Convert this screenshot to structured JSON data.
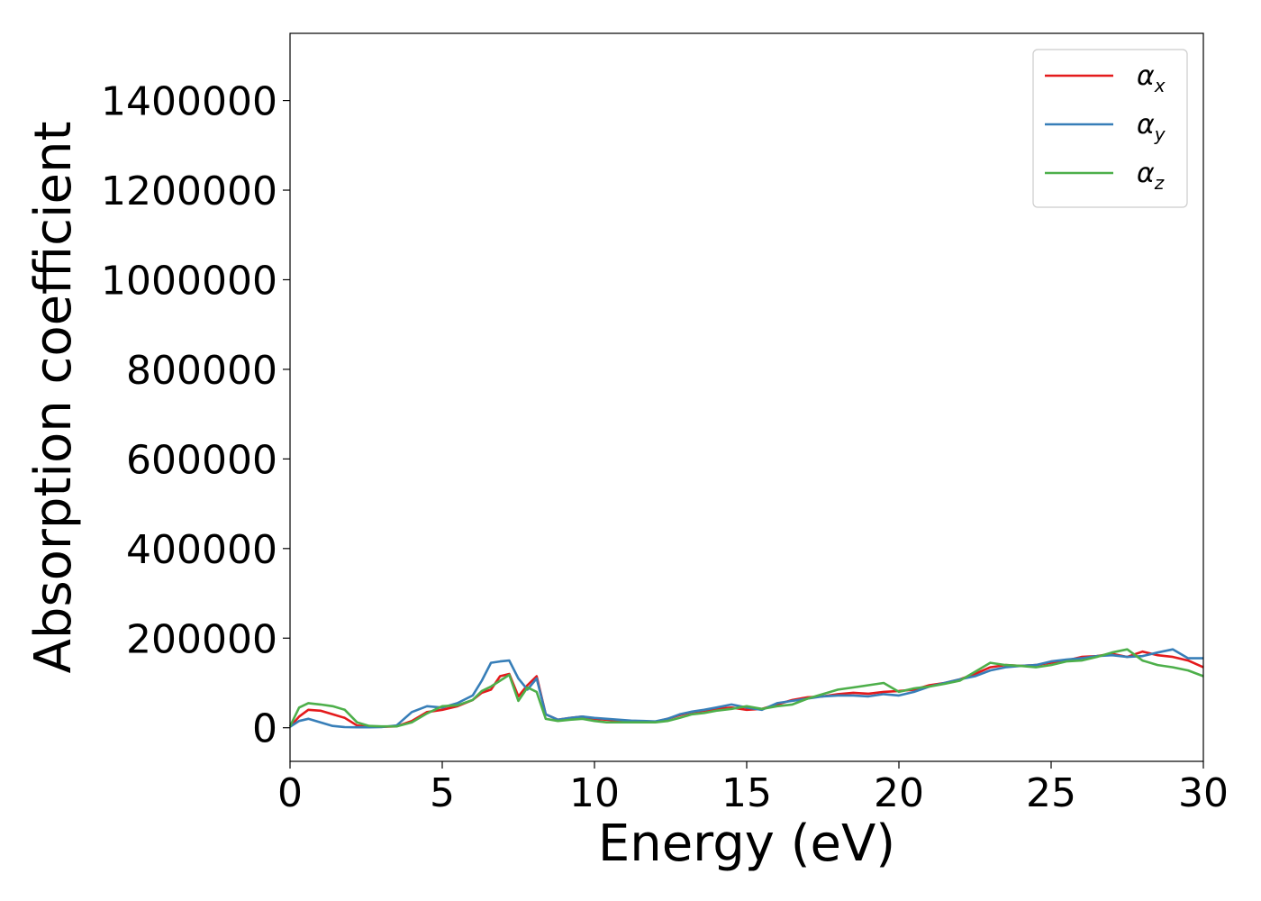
{
  "chart_data": {
    "type": "line",
    "title": "",
    "xlabel": "Energy (eV)",
    "ylabel": "Absorption coefficient",
    "xlim": [
      0,
      30
    ],
    "ylim": [
      -75000,
      1550000
    ],
    "xticks": [
      0,
      5,
      10,
      15,
      20,
      25,
      30
    ],
    "yticks": [
      0,
      200000,
      400000,
      600000,
      800000,
      1000000,
      1200000,
      1400000
    ],
    "xtick_labels": [
      "0",
      "5",
      "10",
      "15",
      "20",
      "25",
      "30"
    ],
    "ytick_labels": [
      "0",
      "200000",
      "400000",
      "600000",
      "800000",
      "1000000",
      "1200000",
      "1400000"
    ],
    "grid": false,
    "legend_position": "top-right",
    "series": [
      {
        "name": "α",
        "subscript": "x",
        "color": "#e41a1c",
        "x": [
          0,
          0.3,
          0.6,
          1.0,
          1.4,
          1.8,
          2.2,
          2.6,
          3.0,
          3.5,
          4.0,
          4.5,
          5.0,
          5.5,
          6.0,
          6.3,
          6.6,
          6.9,
          7.2,
          7.5,
          7.8,
          8.1,
          8.4,
          8.8,
          9.2,
          9.6,
          10.0,
          10.4,
          10.8,
          11.2,
          11.6,
          12.0,
          12.4,
          12.8,
          13.2,
          13.6,
          14.0,
          14.5,
          15.0,
          15.5,
          16.0,
          16.5,
          17.0,
          17.5,
          18.0,
          18.5,
          19.0,
          19.5,
          20.0,
          20.5,
          21.0,
          21.5,
          22.0,
          22.5,
          23.0,
          23.5,
          24.0,
          24.5,
          25.0,
          25.5,
          26.0,
          26.5,
          27.0,
          27.5,
          28.0,
          28.5,
          29.0,
          29.5,
          30.0
        ],
        "y": [
          2000,
          25000,
          40000,
          38000,
          30000,
          22000,
          5000,
          2000,
          2000,
          3000,
          15000,
          35000,
          40000,
          48000,
          62000,
          78000,
          85000,
          115000,
          120000,
          70000,
          95000,
          115000,
          30000,
          18000,
          22000,
          25000,
          20000,
          18000,
          16000,
          15000,
          14000,
          13000,
          20000,
          28000,
          35000,
          38000,
          42000,
          45000,
          40000,
          42000,
          52000,
          62000,
          68000,
          70000,
          75000,
          78000,
          76000,
          80000,
          82000,
          85000,
          95000,
          100000,
          108000,
          120000,
          135000,
          140000,
          138000,
          140000,
          145000,
          150000,
          158000,
          160000,
          165000,
          158000,
          170000,
          162000,
          158000,
          150000,
          135000
        ]
      },
      {
        "name": "α",
        "subscript": "y",
        "color": "#377eb8",
        "x": [
          0,
          0.3,
          0.6,
          1.0,
          1.4,
          1.8,
          2.2,
          2.6,
          3.0,
          3.5,
          4.0,
          4.5,
          5.0,
          5.5,
          6.0,
          6.3,
          6.6,
          6.9,
          7.2,
          7.5,
          7.8,
          8.1,
          8.4,
          8.8,
          9.2,
          9.6,
          10.0,
          10.4,
          10.8,
          11.2,
          11.6,
          12.0,
          12.4,
          12.8,
          13.2,
          13.6,
          14.0,
          14.5,
          15.0,
          15.5,
          16.0,
          16.5,
          17.0,
          17.5,
          18.0,
          18.5,
          19.0,
          19.5,
          20.0,
          20.5,
          21.0,
          21.5,
          22.0,
          22.5,
          23.0,
          23.5,
          24.0,
          24.5,
          25.0,
          25.5,
          26.0,
          26.5,
          27.0,
          27.5,
          28.0,
          28.5,
          29.0,
          29.5,
          30.0
        ],
        "y": [
          2000,
          15000,
          20000,
          12000,
          4000,
          1500,
          1000,
          1000,
          1500,
          5000,
          35000,
          48000,
          45000,
          55000,
          72000,
          105000,
          145000,
          148000,
          150000,
          110000,
          85000,
          110000,
          30000,
          18000,
          22000,
          25000,
          22000,
          20000,
          18000,
          16000,
          15000,
          14000,
          20000,
          30000,
          36000,
          40000,
          45000,
          52000,
          45000,
          40000,
          55000,
          60000,
          65000,
          70000,
          72000,
          72000,
          70000,
          75000,
          72000,
          80000,
          92000,
          100000,
          108000,
          115000,
          128000,
          135000,
          138000,
          140000,
          148000,
          152000,
          155000,
          160000,
          162000,
          158000,
          160000,
          168000,
          175000,
          155000,
          155000
        ]
      },
      {
        "name": "α",
        "subscript": "z",
        "color": "#4daf4a",
        "x": [
          0,
          0.3,
          0.6,
          1.0,
          1.4,
          1.8,
          2.2,
          2.6,
          3.0,
          3.5,
          4.0,
          4.5,
          5.0,
          5.5,
          6.0,
          6.3,
          6.6,
          6.9,
          7.2,
          7.5,
          7.8,
          8.1,
          8.4,
          8.8,
          9.2,
          9.6,
          10.0,
          10.4,
          10.8,
          11.2,
          11.6,
          12.0,
          12.4,
          12.8,
          13.2,
          13.6,
          14.0,
          14.5,
          15.0,
          15.5,
          16.0,
          16.5,
          17.0,
          17.5,
          18.0,
          18.5,
          19.0,
          19.5,
          20.0,
          20.5,
          21.0,
          21.5,
          22.0,
          22.5,
          23.0,
          23.5,
          24.0,
          24.5,
          25.0,
          25.5,
          26.0,
          26.5,
          27.0,
          27.5,
          28.0,
          28.5,
          29.0,
          29.5,
          30.0
        ],
        "y": [
          3000,
          45000,
          55000,
          52000,
          48000,
          40000,
          12000,
          4000,
          3000,
          3000,
          12000,
          32000,
          48000,
          50000,
          62000,
          82000,
          92000,
          105000,
          118000,
          60000,
          90000,
          80000,
          20000,
          15000,
          18000,
          20000,
          15000,
          12000,
          12000,
          12000,
          12000,
          12000,
          15000,
          22000,
          30000,
          33000,
          38000,
          42000,
          48000,
          42000,
          48000,
          52000,
          65000,
          75000,
          85000,
          90000,
          95000,
          100000,
          80000,
          88000,
          92000,
          98000,
          105000,
          125000,
          145000,
          140000,
          138000,
          135000,
          140000,
          148000,
          150000,
          158000,
          168000,
          175000,
          150000,
          140000,
          135000,
          128000,
          115000
        ]
      }
    ]
  }
}
